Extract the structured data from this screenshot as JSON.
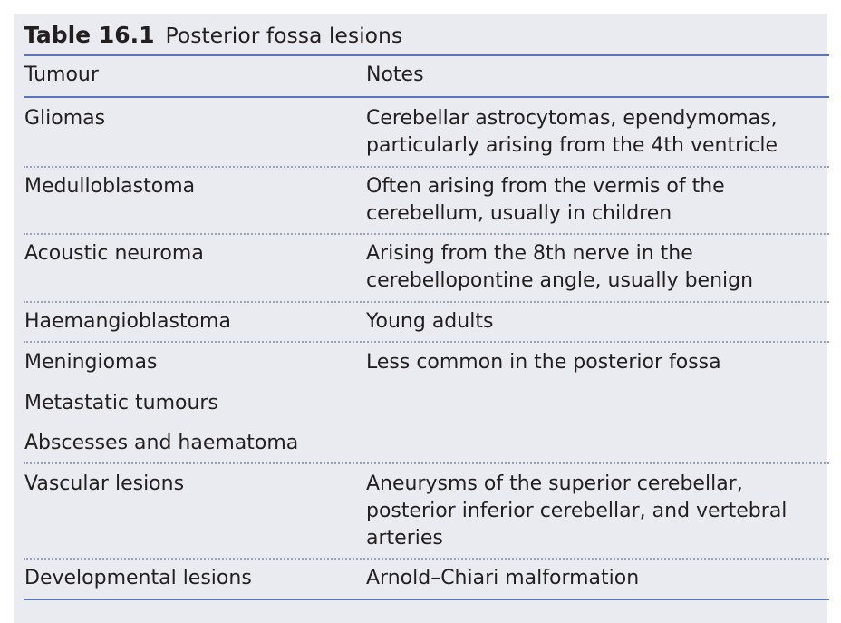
{
  "table": {
    "number": "Table 16.1",
    "title": "Posterior fossa lesions",
    "headers": {
      "col1": "Tumour",
      "col2": "Notes"
    },
    "rows": [
      {
        "tumour": "Gliomas",
        "notes": [
          "Cerebellar astrocytomas, ependymomas,",
          "particularly arising from the 4th ventricle"
        ]
      },
      {
        "tumour": "Medulloblastoma",
        "notes": [
          "Often arising from the vermis of the",
          "cerebellum, usually in children"
        ]
      },
      {
        "tumour": "Acoustic neuroma",
        "notes": [
          "Arising from the 8th nerve in the",
          "cerebellopontine angle, usually benign"
        ]
      },
      {
        "tumour": "Haemangioblastoma",
        "notes": [
          "Young adults"
        ]
      },
      {
        "tumour": "Meningiomas",
        "notes": [
          "Less common in the posterior fossa"
        ]
      },
      {
        "tumour": "Metastatic tumours",
        "notes": []
      },
      {
        "tumour": "Abscesses and haematoma",
        "notes": []
      },
      {
        "tumour": "Vascular lesions",
        "notes": [
          "Aneurysms of the superior cerebellar,",
          "posterior inferior cerebellar, and vertebral",
          "arteries"
        ]
      },
      {
        "tumour": "Developmental lesions",
        "notes": [
          "Arnold–Chiari malformation"
        ]
      }
    ]
  }
}
